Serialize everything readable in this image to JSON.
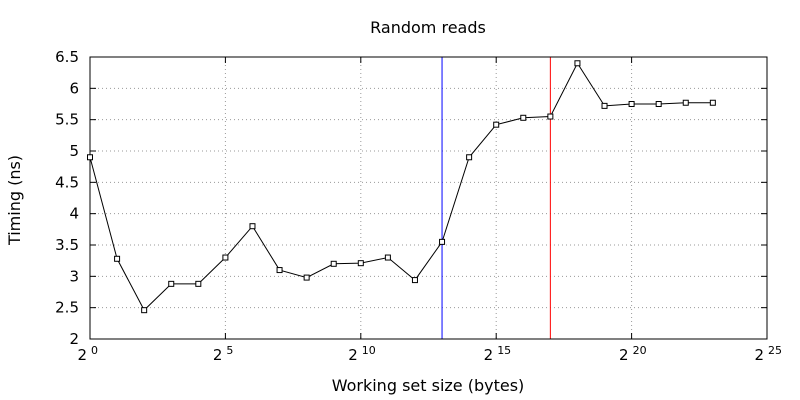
{
  "chart_data": {
    "type": "line",
    "title": "Random reads",
    "xlabel": "Working set size (bytes)",
    "ylabel": "Timing (ns)",
    "x_scale": "log2",
    "xlim_exponent": [
      0,
      25
    ],
    "x_ticks": [
      {
        "base": "2",
        "exp": "0",
        "value": 0
      },
      {
        "base": "2",
        "exp": "5",
        "value": 5
      },
      {
        "base": "2",
        "exp": "10",
        "value": 10
      },
      {
        "base": "2",
        "exp": "15",
        "value": 15
      },
      {
        "base": "2",
        "exp": "20",
        "value": 20
      },
      {
        "base": "2",
        "exp": "25",
        "value": 25
      }
    ],
    "ylim": [
      2,
      6.5
    ],
    "y_ticks": [
      {
        "label": "2",
        "value": 2
      },
      {
        "label": "2.5",
        "value": 2.5
      },
      {
        "label": "3",
        "value": 3
      },
      {
        "label": "3.5",
        "value": 3.5
      },
      {
        "label": "4",
        "value": 4
      },
      {
        "label": "4.5",
        "value": 4.5
      },
      {
        "label": "5",
        "value": 5
      },
      {
        "label": "5.5",
        "value": 5.5
      },
      {
        "label": "6",
        "value": 6
      },
      {
        "label": "6.5",
        "value": 6.5
      }
    ],
    "grid": true,
    "legend": "none",
    "series": [
      {
        "color": "#000000",
        "marker": "open-square",
        "x": [
          1,
          2,
          4,
          8,
          16,
          32,
          64,
          128,
          256,
          512,
          1024,
          2048,
          4096,
          8192,
          16384,
          32768,
          65536,
          131072,
          262144,
          524288,
          1048576,
          2097152,
          4194304,
          8388608
        ],
        "y": [
          4.9,
          3.28,
          2.46,
          2.88,
          2.88,
          3.3,
          3.8,
          3.1,
          2.98,
          3.2,
          3.21,
          3.3,
          2.94,
          3.55,
          4.9,
          5.42,
          5.53,
          5.55,
          6.4,
          5.72,
          5.75,
          5.75,
          5.77,
          5.77
        ]
      }
    ],
    "vlines": [
      {
        "x": 8192,
        "color": "#0000ff"
      },
      {
        "x": 131072,
        "color": "#ff0000"
      }
    ]
  }
}
